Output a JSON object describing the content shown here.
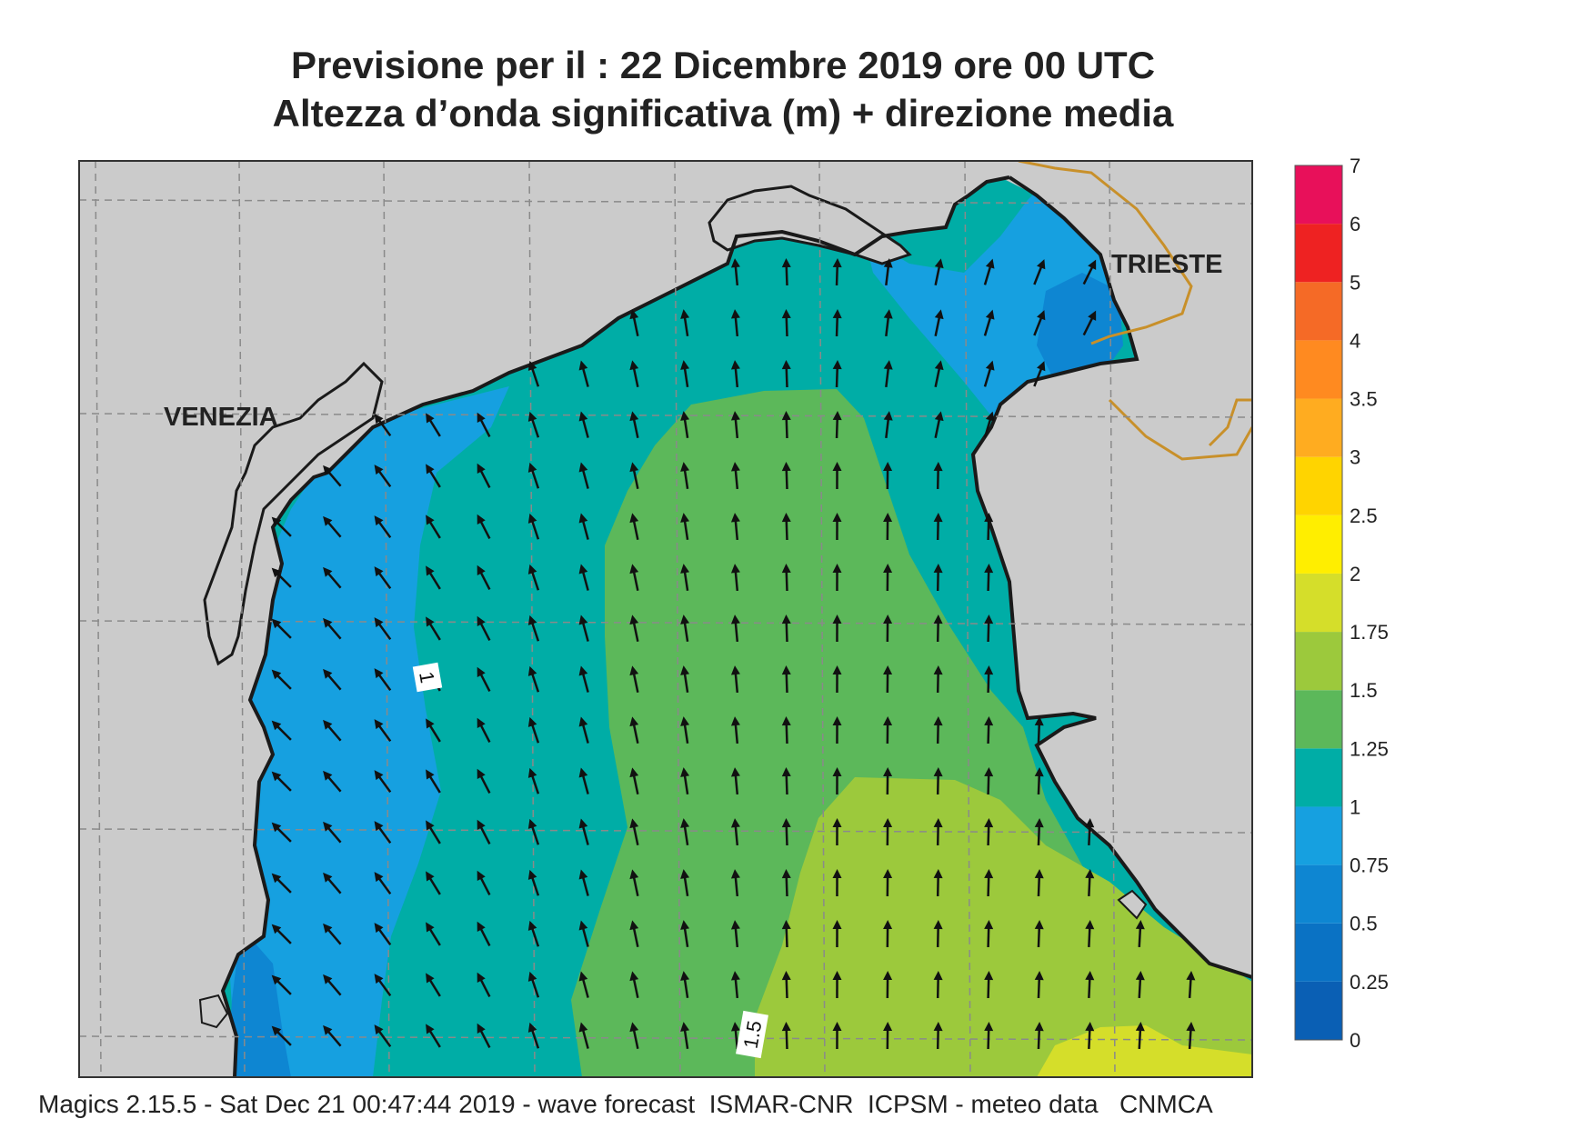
{
  "title_line1": "Previsione per il  :  22 Dicembre  2019   ore 00 UTC",
  "title_line2": "Altezza d’onda significativa (m) + direzione media",
  "footer": "Magics 2.15.5 - Sat Dec 21 00:47:44 2019 - wave forecast  ISMAR-CNR  ICPSM - meteo data   CNMCA",
  "cities": [
    {
      "name": "VENEZIA"
    },
    {
      "name": "TRIESTE"
    }
  ],
  "contour_labels": [
    "1",
    "1.5"
  ],
  "legend": {
    "levels": [
      "0",
      "0.25",
      "0.5",
      "0.75",
      "1",
      "1.25",
      "1.5",
      "1.75",
      "2",
      "2.5",
      "3",
      "3.5",
      "4",
      "5",
      "6",
      "7"
    ],
    "colors": [
      "#0a5fb4",
      "#0a72c4",
      "#0e86d2",
      "#16a0e0",
      "#00ada6",
      "#5cb85a",
      "#9cc93c",
      "#d5de2a",
      "#ffee00",
      "#ffd400",
      "#ffac20",
      "#ff8a20",
      "#f56a26",
      "#ee2222",
      "#e8105a"
    ]
  },
  "colors": {
    "land": "#cbcbcb",
    "coast": "#1a1a1a",
    "border": "#c8902a",
    "grid": "#8a8a8a"
  }
}
